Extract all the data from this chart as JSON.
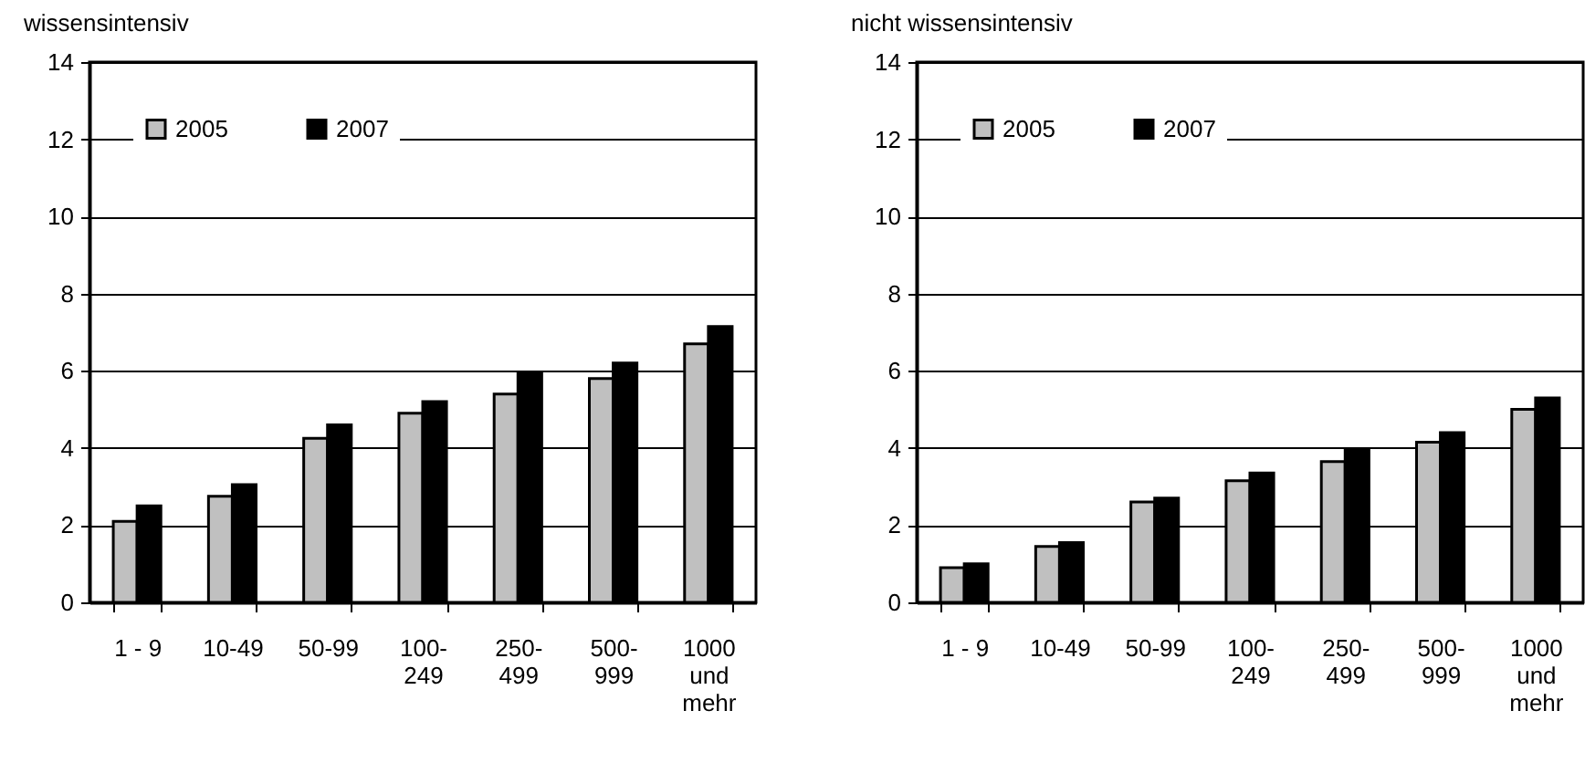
{
  "chart_data": [
    {
      "type": "bar",
      "title": "wissensintensiv",
      "categories": [
        "1 - 9",
        "10-49",
        "50-99",
        "100-\n249",
        "250-\n499",
        "500-\n999",
        "1000\nund\nmehr"
      ],
      "series": [
        {
          "name": "2005",
          "color": "#c0c0c0",
          "values": [
            2.1,
            2.75,
            4.25,
            4.9,
            5.4,
            5.8,
            6.7
          ]
        },
        {
          "name": "2007",
          "color": "#000000",
          "values": [
            2.5,
            3.05,
            4.6,
            5.2,
            5.95,
            6.2,
            7.15
          ]
        }
      ],
      "ylim": [
        0,
        14
      ],
      "yticks": [
        0,
        2,
        4,
        6,
        8,
        10,
        12,
        14
      ],
      "grid": "y",
      "legend": "top left"
    },
    {
      "type": "bar",
      "title": "nicht wissensintensiv",
      "categories": [
        "1 - 9",
        "10-49",
        "50-99",
        "100-\n249",
        "250-\n499",
        "500-\n999",
        "1000\nund\nmehr"
      ],
      "series": [
        {
          "name": "2005",
          "color": "#c0c0c0",
          "values": [
            0.9,
            1.45,
            2.6,
            3.15,
            3.65,
            4.15,
            5.0
          ]
        },
        {
          "name": "2007",
          "color": "#000000",
          "values": [
            1.0,
            1.55,
            2.7,
            3.35,
            3.95,
            4.4,
            5.3
          ]
        }
      ],
      "ylim": [
        0,
        14
      ],
      "yticks": [
        0,
        2,
        4,
        6,
        8,
        10,
        12,
        14
      ],
      "grid": "y",
      "legend": "top left"
    }
  ]
}
